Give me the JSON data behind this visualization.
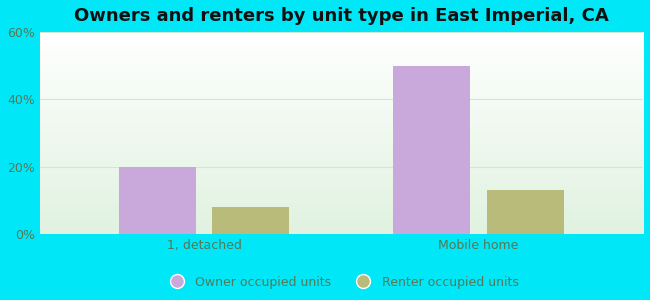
{
  "title": "Owners and renters by unit type in East Imperial, CA",
  "categories": [
    "1, detached",
    "Mobile home"
  ],
  "owner_values": [
    20,
    50
  ],
  "renter_values": [
    8,
    13
  ],
  "owner_color": "#c9a8dc",
  "renter_color": "#b8bb7a",
  "ylim": [
    0,
    60
  ],
  "yticks": [
    0,
    20,
    40,
    60
  ],
  "ytick_labels": [
    "0%",
    "20%",
    "40%",
    "60%"
  ],
  "background_outer": "#00e8f8",
  "bar_width": 0.28,
  "legend_owner": "Owner occupied units",
  "legend_renter": "Renter occupied units",
  "title_fontsize": 13,
  "tick_fontsize": 9,
  "legend_fontsize": 9,
  "tick_color": "#557755",
  "grid_color": "#d0e8d0",
  "title_color": "#111111"
}
